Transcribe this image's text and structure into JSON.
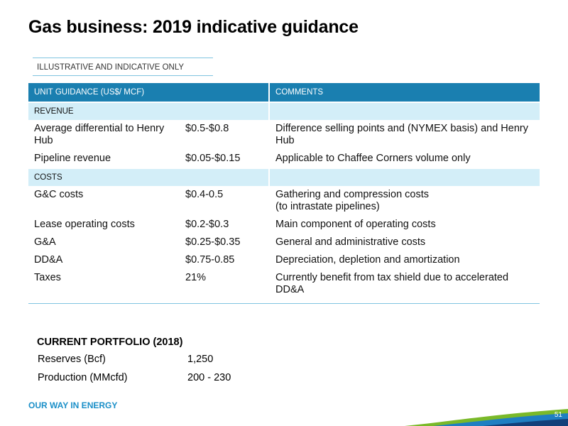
{
  "title": "Gas business: 2019 indicative guidance",
  "disclaimer": "ILLUSTRATIVE AND INDICATIVE ONLY",
  "table": {
    "header_left": "UNIT GUIDANCE (US$/ MCF)",
    "header_right": "COMMENTS",
    "revenue_label": "REVENUE",
    "revenue_rows": [
      {
        "item": "Average differential to Henry Hub",
        "value": "$0.5-$0.8",
        "comment": "Difference selling points and (NYMEX basis) and Henry Hub"
      },
      {
        "item": "Pipeline revenue",
        "value": "$0.05-$0.15",
        "comment": "Applicable to Chaffee Corners volume only"
      }
    ],
    "costs_label": "COSTS",
    "cost_rows": [
      {
        "item": "G&C costs",
        "value": "$0.4-0.5",
        "comment": "Gathering and compression costs",
        "comment2": "(to intrastate pipelines)"
      },
      {
        "item": "Lease operating costs",
        "value": "$0.2-$0.3",
        "comment": "Main component of operating costs"
      },
      {
        "item": "G&A",
        "value": "$0.25-$0.35",
        "comment": "General and administrative costs"
      },
      {
        "item": "DD&A",
        "value": "$0.75-0.85",
        "comment": "Depreciation, depletion and amortization"
      },
      {
        "item": "Taxes",
        "value": "21%",
        "comment": "Currently benefit from tax shield due to accelerated DD&A"
      }
    ]
  },
  "portfolio": {
    "title": "CURRENT PORTFOLIO (2018)",
    "rows": [
      {
        "label": "Reserves (Bcf)",
        "value": "1,250"
      },
      {
        "label": "Production (MMcfd)",
        "value": "200 - 230"
      }
    ]
  },
  "footer": {
    "tagline": "OUR WAY IN ENERGY",
    "page_number": "51",
    "colors": {
      "accent": "#1a8fc8",
      "wave_green": "#7ab929",
      "wave_blue": "#1f7fc2",
      "wave_navy": "#123f7a"
    }
  }
}
